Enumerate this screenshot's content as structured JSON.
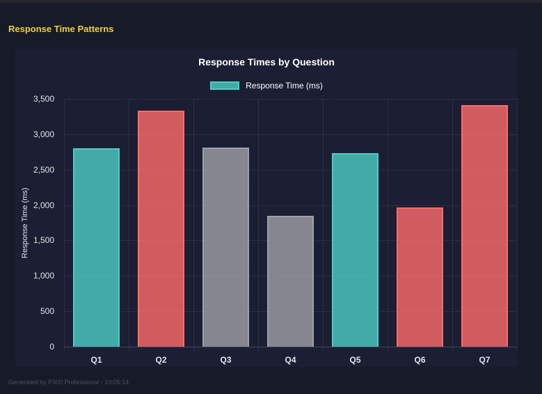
{
  "page": {
    "title": "Response Time Patterns",
    "footer": "Generated by P300 Professional - 10:05:14"
  },
  "colors": {
    "page-bg": "#171a27",
    "topbar-bg": "#26272c",
    "panel-bg": "#1c1f33",
    "accent-yellow": "#f0cf3c",
    "title-text": "#ffffff",
    "axis-text": "#e4e4ea",
    "grid": "rgba(255,255,255,0.08)",
    "baseline": "rgba(255,255,255,0.18)",
    "footer-text": "#4b5160",
    "teal": "#4ECDC4",
    "red": "#FF6B6B",
    "gray": "#A0A0A8"
  },
  "chart_data": {
    "type": "bar",
    "title": "Response Times by Question",
    "legend": [
      {
        "label": "Response Time (ms)",
        "fill": "rgba(78,205,196,0.8)",
        "border": "#4ECDC4"
      }
    ],
    "legend_position": "top",
    "categories": [
      "Q1",
      "Q2",
      "Q3",
      "Q4",
      "Q5",
      "Q6",
      "Q7"
    ],
    "values": [
      2800,
      3335,
      2815,
      1845,
      2730,
      1970,
      3415
    ],
    "bar_styles": [
      {
        "fill": "rgba(78,205,196,0.8)",
        "border": "#4ECDC4"
      },
      {
        "fill": "rgba(255,107,107,0.8)",
        "border": "#FF6B6B"
      },
      {
        "fill": "rgba(160,160,168,0.8)",
        "border": "#A0A0A8"
      },
      {
        "fill": "rgba(160,160,168,0.8)",
        "border": "#A0A0A8"
      },
      {
        "fill": "rgba(78,205,196,0.8)",
        "border": "#4ECDC4"
      },
      {
        "fill": "rgba(255,107,107,0.8)",
        "border": "#FF6B6B"
      },
      {
        "fill": "rgba(255,107,107,0.8)",
        "border": "#FF6B6B"
      }
    ],
    "xlabel": "",
    "ylabel": "Response Time (ms)",
    "ylim": [
      0,
      3500
    ],
    "ytick_values": [
      0,
      500,
      1000,
      1500,
      2000,
      2500,
      3000,
      3500
    ],
    "ytick_labels": [
      "0",
      "500",
      "1,000",
      "1,500",
      "2,000",
      "2,500",
      "3,000",
      "3,500"
    ],
    "grid": true
  }
}
